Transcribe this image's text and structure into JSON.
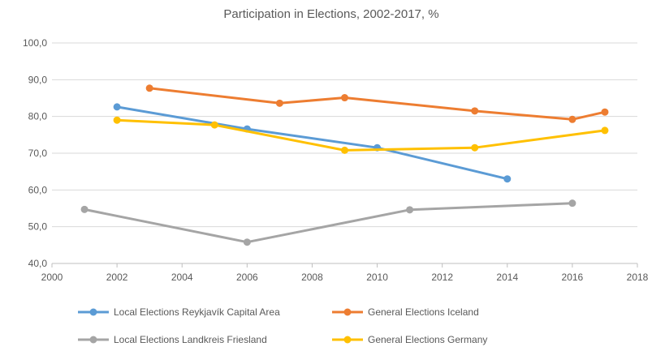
{
  "chart_data": {
    "type": "line",
    "title": "Participation in Elections, 2002-2017, %",
    "xlabel": "",
    "ylabel": "",
    "xlim": [
      2000,
      2018
    ],
    "ylim": [
      40,
      100
    ],
    "x_ticks": [
      "2000",
      "2002",
      "2004",
      "2006",
      "2008",
      "2010",
      "2012",
      "2014",
      "2016",
      "2018"
    ],
    "y_ticks": [
      "40,0",
      "50,0",
      "60,0",
      "70,0",
      "80,0",
      "90,0",
      "100,0"
    ],
    "grid": "horizontal",
    "legend_position": "bottom",
    "series": [
      {
        "name": "Local Elections Reykjavík Capital Area",
        "color": "#5b9bd5",
        "points": [
          [
            2002,
            82.6
          ],
          [
            2006,
            76.6
          ],
          [
            2010,
            71.5
          ],
          [
            2014,
            63.0
          ]
        ]
      },
      {
        "name": "General Elections Iceland",
        "color": "#ed7d31",
        "points": [
          [
            2003,
            87.7
          ],
          [
            2007,
            83.6
          ],
          [
            2009,
            85.1
          ],
          [
            2013,
            81.5
          ],
          [
            2016,
            79.2
          ],
          [
            2017,
            81.2
          ]
        ]
      },
      {
        "name": "Local Elections Landkreis Friesland",
        "color": "#a5a5a5",
        "points": [
          [
            2001,
            54.7
          ],
          [
            2006,
            45.8
          ],
          [
            2011,
            54.6
          ],
          [
            2016,
            56.4
          ]
        ]
      },
      {
        "name": "General Elections Germany",
        "color": "#ffc000",
        "points": [
          [
            2002,
            79.0
          ],
          [
            2005,
            77.7
          ],
          [
            2009,
            70.8
          ],
          [
            2013,
            71.5
          ],
          [
            2017,
            76.2
          ]
        ]
      }
    ]
  }
}
